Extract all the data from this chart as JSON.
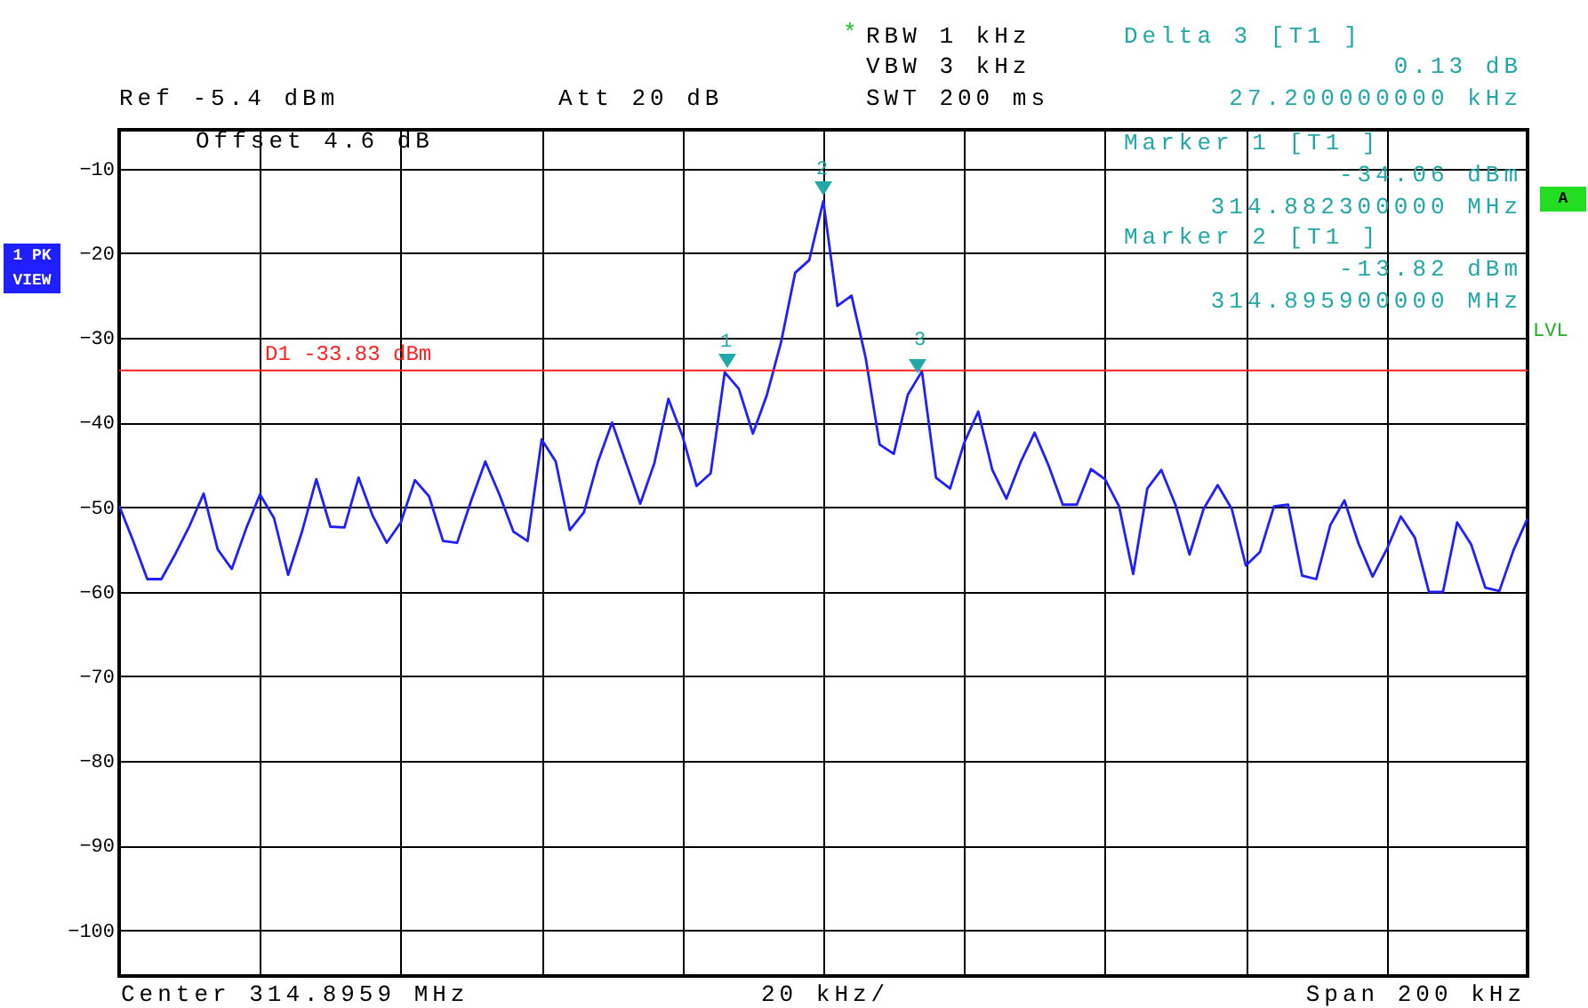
{
  "chart_data": {
    "type": "line",
    "categories": [
      null,
      null,
      null,
      null,
      null,
      null,
      null,
      null,
      null,
      null,
      null,
      null,
      null,
      null,
      null,
      null,
      null,
      null,
      null,
      null,
      null,
      null,
      null,
      null,
      null,
      null,
      null,
      null,
      null,
      null,
      null,
      null,
      null,
      null,
      null,
      null,
      null,
      null,
      null,
      null,
      null,
      null,
      null,
      null,
      null,
      null,
      null,
      null,
      null,
      null,
      null,
      null,
      null,
      null,
      null,
      null,
      null,
      null,
      null,
      null,
      null,
      null,
      null,
      null,
      null,
      null,
      null,
      null,
      null,
      null,
      null,
      null,
      null,
      null,
      null,
      null,
      null,
      null,
      null,
      null,
      null,
      null,
      null,
      null,
      null,
      null,
      null,
      null,
      null,
      null,
      null,
      null,
      null,
      null,
      null,
      null,
      null,
      null,
      null,
      null,
      null
    ],
    "series": [
      {
        "color": "#1f1fff",
        "values": [
          -49.8,
          -54.0,
          -58.5,
          -58.5,
          -55.5,
          -52.2,
          -48.4,
          -55.0,
          -57.3,
          -52.6,
          -48.5,
          -51.3,
          -58.0,
          -52.8,
          -46.7,
          -52.3,
          -52.4,
          -46.5,
          -51.0,
          -54.2,
          -51.8,
          -46.8,
          -48.7,
          -54.0,
          -54.2,
          -49.2,
          -44.6,
          -48.5,
          -52.9,
          -54.0,
          -42.0,
          -44.6,
          -52.7,
          -50.6,
          -44.6,
          -40.0,
          -44.8,
          -49.6,
          -44.8,
          -37.2,
          -41.6,
          -47.5,
          -46.0,
          -34.06,
          -36.0,
          -41.3,
          -36.7,
          -30.5,
          -22.3,
          -20.8,
          -13.82,
          -26.2,
          -25.0,
          -32.3,
          -42.6,
          -43.7,
          -36.7,
          -33.93,
          -46.5,
          -47.8,
          -42.4,
          -38.7,
          -45.6,
          -49.0,
          -44.7,
          -41.2,
          -45.1,
          -49.7,
          -49.7,
          -45.5,
          -46.7,
          -49.9,
          -57.9,
          -47.8,
          -45.6,
          -49.7,
          -55.6,
          -50.2,
          -47.4,
          -50.2,
          -56.9,
          -55.3,
          -49.9,
          -49.7,
          -58.1,
          -58.5,
          -52.1,
          -49.2,
          -54.3,
          -58.2,
          -55.0,
          -51.1,
          -53.6,
          -60.0,
          -60.0,
          -51.8,
          -54.4,
          -59.5,
          -59.9,
          -55.1,
          -51.3
        ]
      }
    ],
    "ylim": [
      -105.4,
      -5.4
    ],
    "yticks": [
      -10,
      -20,
      -30,
      -40,
      -50,
      -60,
      -70,
      -80,
      -90,
      -100
    ],
    "tick_labels": "y",
    "grid": true,
    "ref_lines": [
      {
        "axis": "y",
        "value": -33.83,
        "label": "D1 -33.83 dBm",
        "color": "#ff2020"
      }
    ],
    "annotations": [
      "*",
      "RBW 1 kHz",
      "VBW 3 kHz",
      "SWT 200 ms",
      "Delta 3 [T1 ]",
      "0.13 dB",
      "27.200000000 kHz",
      "Ref -5.4 dBm",
      "Att 20 dB",
      "Offset 4.6 dB",
      "Marker 1 [T1 ]",
      "-34.06 dBm",
      "314.882300000 MHz",
      "Marker 2 [T1 ]",
      "-13.82 dBm",
      "314.895900000 MHz",
      "1 PK VIEW",
      "A",
      "LVL",
      "Center 314.8959 MHz",
      "20 kHz/",
      "Span 200 kHz",
      "1",
      "2",
      "3"
    ]
  }
}
